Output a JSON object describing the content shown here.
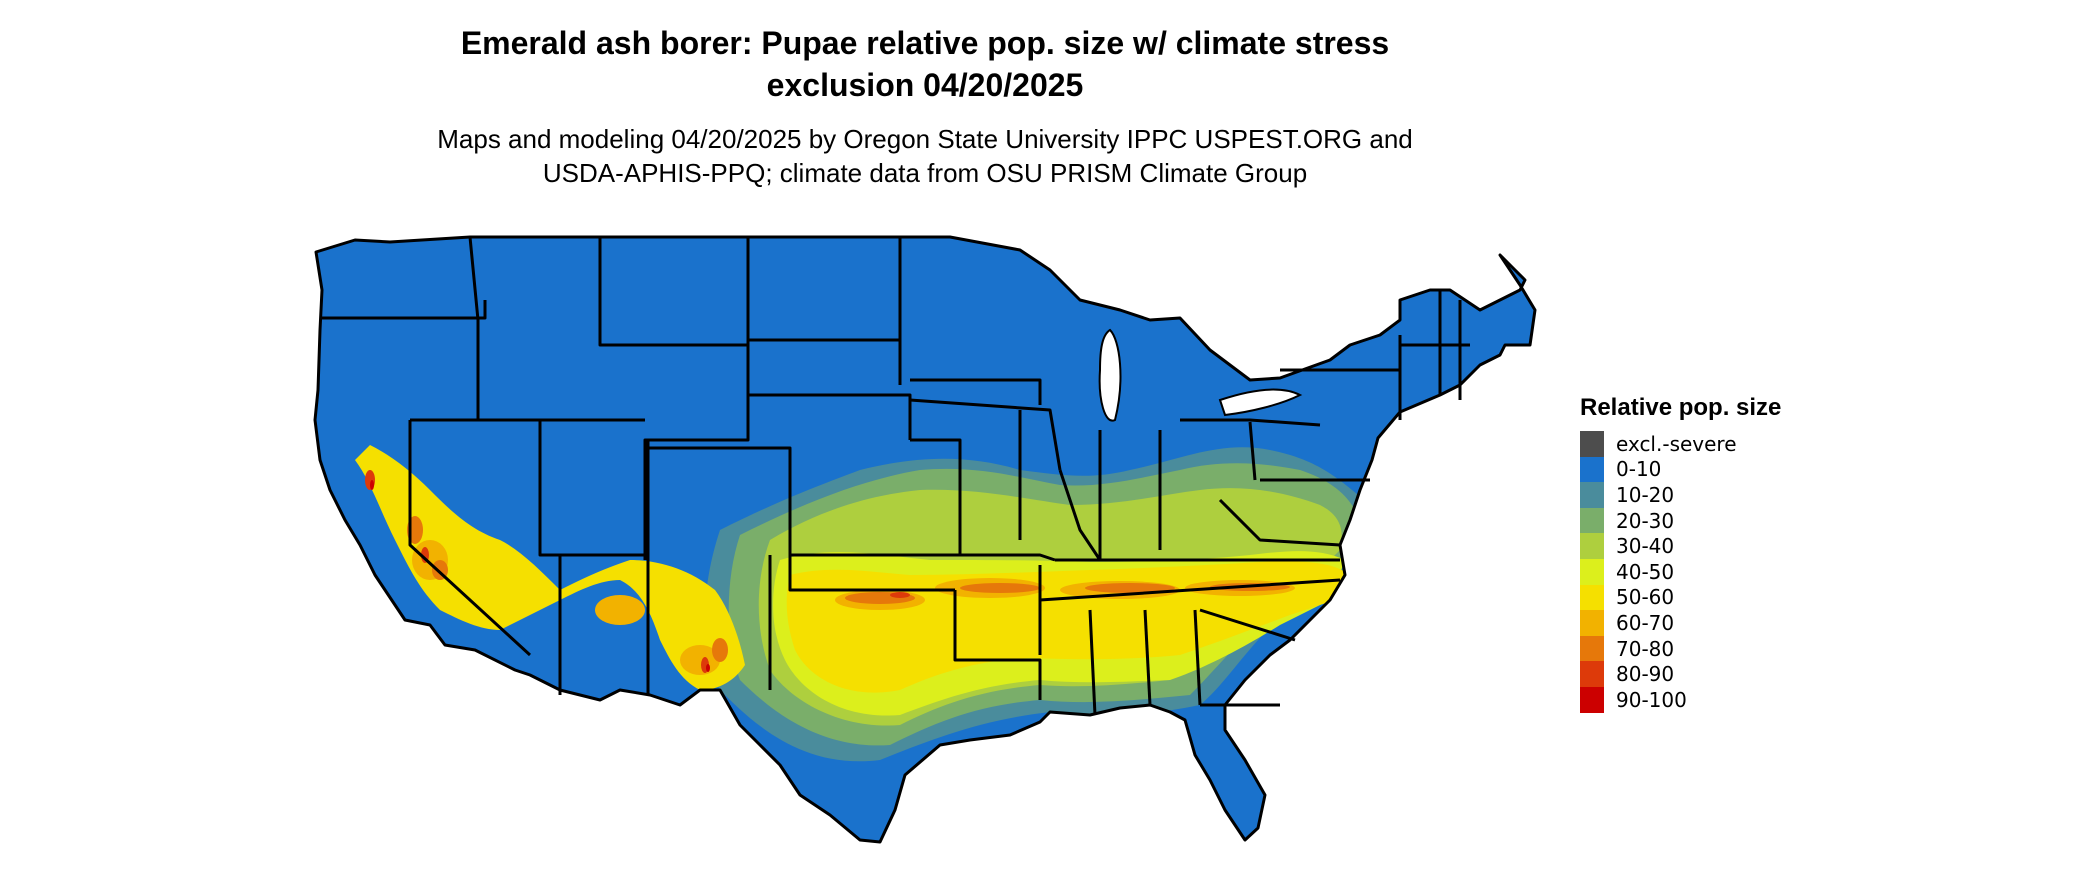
{
  "title": {
    "line1": "Emerald ash borer: Pupae relative pop. size w/ climate stress",
    "line2": "exclusion 04/20/2025"
  },
  "subtitle": {
    "line1": "Maps and modeling 04/20/2025 by Oregon State University IPPC USPEST.ORG and",
    "line2": "USDA-APHIS-PPQ; climate data from OSU PRISM Climate Group"
  },
  "legend": {
    "title": "Relative pop. size",
    "items": [
      {
        "label": "excl.-severe",
        "color": "#4d4d4d"
      },
      {
        "label": "0-10",
        "color": "#1a72cc"
      },
      {
        "label": "10-20",
        "color": "#4a8c9c"
      },
      {
        "label": "20-30",
        "color": "#7aae6a"
      },
      {
        "label": "30-40",
        "color": "#aecf3e"
      },
      {
        "label": "40-50",
        "color": "#dcef1c"
      },
      {
        "label": "50-60",
        "color": "#f5e000"
      },
      {
        "label": "60-70",
        "color": "#f2b200"
      },
      {
        "label": "70-80",
        "color": "#e6780a"
      },
      {
        "label": "80-90",
        "color": "#dd3a0a"
      },
      {
        "label": "90-100",
        "color": "#cc0000"
      }
    ]
  },
  "map": {
    "region": "Contiguous United States",
    "base_color": "#1a72cc",
    "border_color": "#000000"
  }
}
